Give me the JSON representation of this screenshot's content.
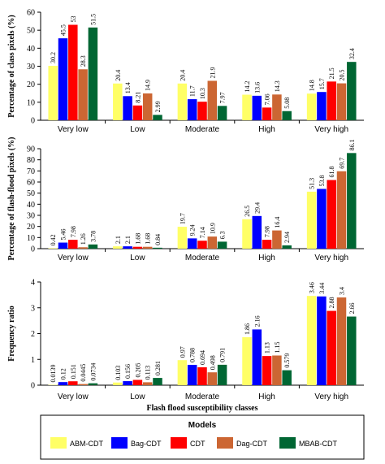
{
  "colors": {
    "ABM-CDT": "#ffff66",
    "Bag-CDT": "#0000ff",
    "CDT": "#ff0000",
    "Dag-CDT": "#cc6633",
    "MBAB-CDT": "#006633"
  },
  "legend": {
    "title": "Models",
    "items": [
      "ABM-CDT",
      "Bag-CDT",
      "CDT",
      "Dag-CDT",
      "MBAB-CDT"
    ]
  },
  "chart_data": [
    {
      "type": "bar",
      "categories": [
        "Very low",
        "Low",
        "Moderate",
        "High",
        "Very high"
      ],
      "ylabel": "Percentage of class pixels (%)",
      "xlabel": "",
      "ylim": [
        0,
        60
      ],
      "yticks": [
        0,
        10,
        20,
        30,
        40,
        50,
        60
      ],
      "series": [
        {
          "name": "ABM-CDT",
          "values": [
            30.2,
            20.4,
            20.4,
            14.2,
            14.8
          ],
          "labels": [
            "30.2",
            "20.4",
            "20.4",
            "14.2",
            "14.8"
          ]
        },
        {
          "name": "Bag-CDT",
          "values": [
            45.5,
            13.4,
            11.7,
            13.6,
            15.7
          ],
          "labels": [
            "45.5",
            "13.4",
            "11.7",
            "13.6",
            "15.7"
          ]
        },
        {
          "name": "CDT",
          "values": [
            53,
            8.21,
            10.3,
            7.06,
            21.5
          ],
          "labels": [
            "53",
            "8.21",
            "10.3",
            "7.06",
            "21.5"
          ]
        },
        {
          "name": "Dag-CDT",
          "values": [
            28.3,
            14.9,
            21.9,
            14.3,
            20.5
          ],
          "labels": [
            "28.3",
            "14.9",
            "21.9",
            "14.3",
            "20.5"
          ]
        },
        {
          "name": "MBAB-CDT",
          "values": [
            51.5,
            2.99,
            7.97,
            5.08,
            32.4
          ],
          "labels": [
            "51.5",
            "2.99",
            "7.97",
            "5.08",
            "32.4"
          ]
        }
      ]
    },
    {
      "type": "bar",
      "categories": [
        "Very low",
        "Low",
        "Moderate",
        "High",
        "Very high"
      ],
      "ylabel": "Percentage of flash-flood pixels (%)",
      "xlabel": "",
      "ylim": [
        0,
        90
      ],
      "yticks": [
        0,
        10,
        20,
        30,
        40,
        50,
        60,
        70,
        80,
        90
      ],
      "series": [
        {
          "name": "ABM-CDT",
          "values": [
            0.42,
            2.1,
            19.7,
            26.5,
            51.3
          ],
          "labels": [
            "0.42",
            "2.1",
            "19.7",
            "26.5",
            "51.3"
          ]
        },
        {
          "name": "Bag-CDT",
          "values": [
            5.46,
            2.1,
            9.24,
            29.4,
            53.8
          ],
          "labels": [
            "5.46",
            "2.1",
            "9.24",
            "29.4",
            "53.8"
          ]
        },
        {
          "name": "CDT",
          "values": [
            7.98,
            1.68,
            7.14,
            7.98,
            61.8
          ],
          "labels": [
            "7.98",
            "1.68",
            "7.14",
            "7.98",
            "61.8"
          ]
        },
        {
          "name": "Dag-CDT",
          "values": [
            1.26,
            1.68,
            10.9,
            16.4,
            69.7
          ],
          "labels": [
            "1.26",
            "1.68",
            "10.9",
            "16.4",
            "69.7"
          ]
        },
        {
          "name": "MBAB-CDT",
          "values": [
            3.78,
            0.84,
            6.3,
            2.94,
            86.1
          ],
          "labels": [
            "3.78",
            "0.84",
            "6.3",
            "2.94",
            "86.1"
          ]
        }
      ]
    },
    {
      "type": "bar",
      "categories": [
        "Very low",
        "Low",
        "Moderate",
        "High",
        "Very high"
      ],
      "ylabel": "Frequency ratio",
      "xlabel": "Flash flood susceptibility classes",
      "ylim": [
        0,
        4
      ],
      "yticks": [
        0,
        1,
        2,
        3,
        4
      ],
      "series": [
        {
          "name": "ABM-CDT",
          "values": [
            0.0139,
            0.103,
            0.97,
            1.86,
            3.46
          ],
          "labels": [
            "0.0139",
            "0.103",
            "0.97",
            "1.86",
            "3.46"
          ]
        },
        {
          "name": "Bag-CDT",
          "values": [
            0.12,
            0.156,
            0.788,
            2.16,
            3.44
          ],
          "labels": [
            "0.12",
            "0.156",
            "0.788",
            "2.16",
            "3.44"
          ]
        },
        {
          "name": "CDT",
          "values": [
            0.151,
            0.205,
            0.694,
            1.13,
            2.88
          ],
          "labels": [
            "0.151",
            "0.205",
            "0.694",
            "1.13",
            "2.88"
          ]
        },
        {
          "name": "Dag-CDT",
          "values": [
            0.0445,
            0.113,
            0.498,
            1.15,
            3.4
          ],
          "labels": [
            "0.0445",
            "0.113",
            "0.498",
            "1.15",
            "3.4"
          ]
        },
        {
          "name": "MBAB-CDT",
          "values": [
            0.0734,
            0.281,
            0.791,
            0.579,
            2.66
          ],
          "labels": [
            "0.0734",
            "0.281",
            "0.791",
            "0.579",
            "2.66"
          ]
        }
      ]
    }
  ]
}
